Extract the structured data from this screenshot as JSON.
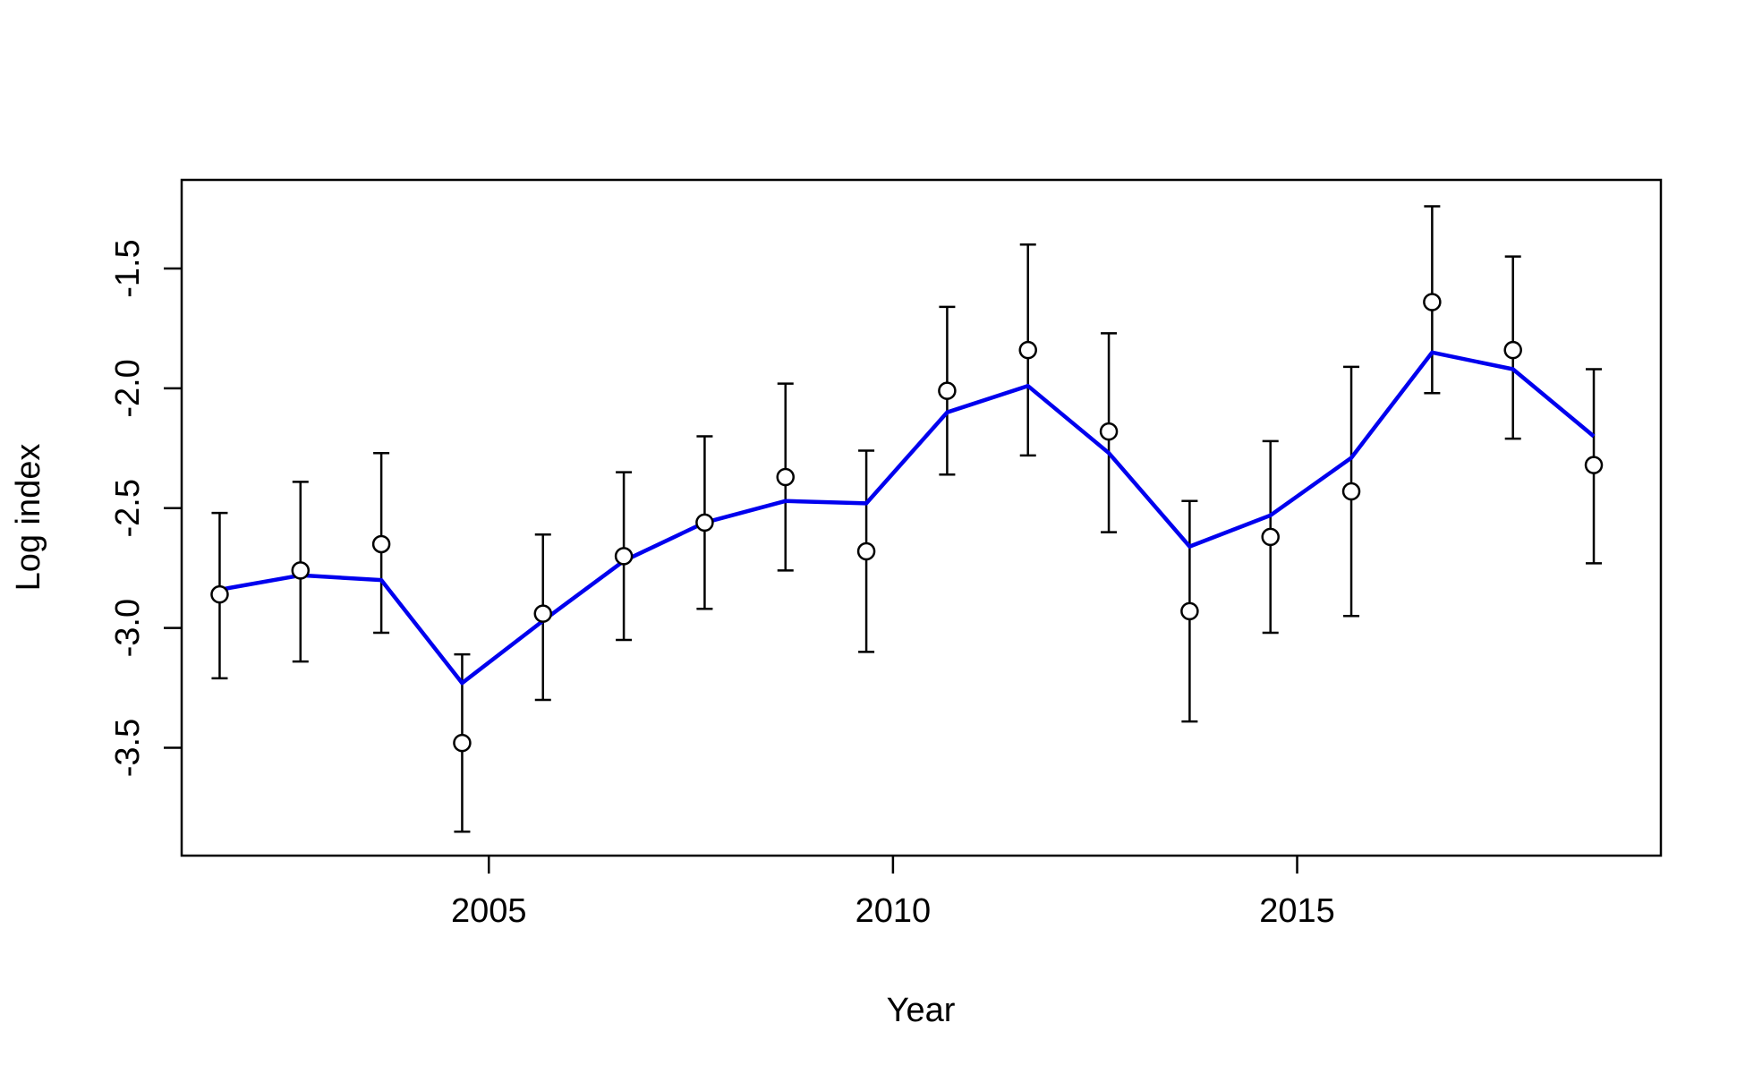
{
  "chart_data": {
    "type": "line",
    "title": "",
    "xlabel": "Year",
    "ylabel": "Log index",
    "xlim": [
      2001.2,
      2019.5
    ],
    "ylim": [
      -3.95,
      -1.13
    ],
    "x_ticks": [
      2005,
      2010,
      2015
    ],
    "y_ticks": [
      -3.5,
      -3.0,
      -2.5,
      -2.0,
      -1.5
    ],
    "y_tick_labels": [
      "-3.5",
      "-3.0",
      "-2.5",
      "-2.0",
      "-1.5"
    ],
    "grid": false,
    "legend": "none",
    "observed": {
      "x": [
        2001.67,
        2002.67,
        2003.67,
        2004.67,
        2005.67,
        2006.67,
        2007.67,
        2008.67,
        2009.67,
        2010.67,
        2011.67,
        2012.67,
        2013.67,
        2014.67,
        2015.67,
        2016.67,
        2017.67,
        2018.67
      ],
      "y": [
        -2.86,
        -2.76,
        -2.65,
        -3.48,
        -2.94,
        -2.7,
        -2.56,
        -2.37,
        -2.68,
        -2.01,
        -1.84,
        -2.18,
        -2.93,
        -2.62,
        -2.43,
        -1.64,
        -1.84,
        -2.32
      ],
      "lower": [
        -3.21,
        -3.14,
        -3.02,
        -3.85,
        -3.3,
        -3.05,
        -2.92,
        -2.76,
        -3.1,
        -2.36,
        -2.28,
        -2.6,
        -3.39,
        -3.02,
        -2.95,
        -2.02,
        -2.21,
        -2.73
      ],
      "upper": [
        -2.52,
        -2.39,
        -2.27,
        -3.11,
        -2.61,
        -2.35,
        -2.2,
        -1.98,
        -2.26,
        -1.66,
        -1.4,
        -1.77,
        -2.47,
        -2.22,
        -1.91,
        -1.24,
        -1.45,
        -1.92
      ]
    },
    "fitted": {
      "color": "#0000ee",
      "x": [
        2001.67,
        2002.67,
        2003.67,
        2004.67,
        2005.67,
        2006.67,
        2007.67,
        2008.67,
        2009.67,
        2010.67,
        2011.67,
        2012.67,
        2013.67,
        2014.67,
        2015.67,
        2016.67,
        2017.67,
        2018.67
      ],
      "y": [
        -2.84,
        -2.78,
        -2.8,
        -3.23,
        -2.97,
        -2.72,
        -2.56,
        -2.47,
        -2.48,
        -2.1,
        -1.99,
        -2.27,
        -2.66,
        -2.53,
        -2.29,
        -1.85,
        -1.92,
        -2.2
      ]
    }
  }
}
